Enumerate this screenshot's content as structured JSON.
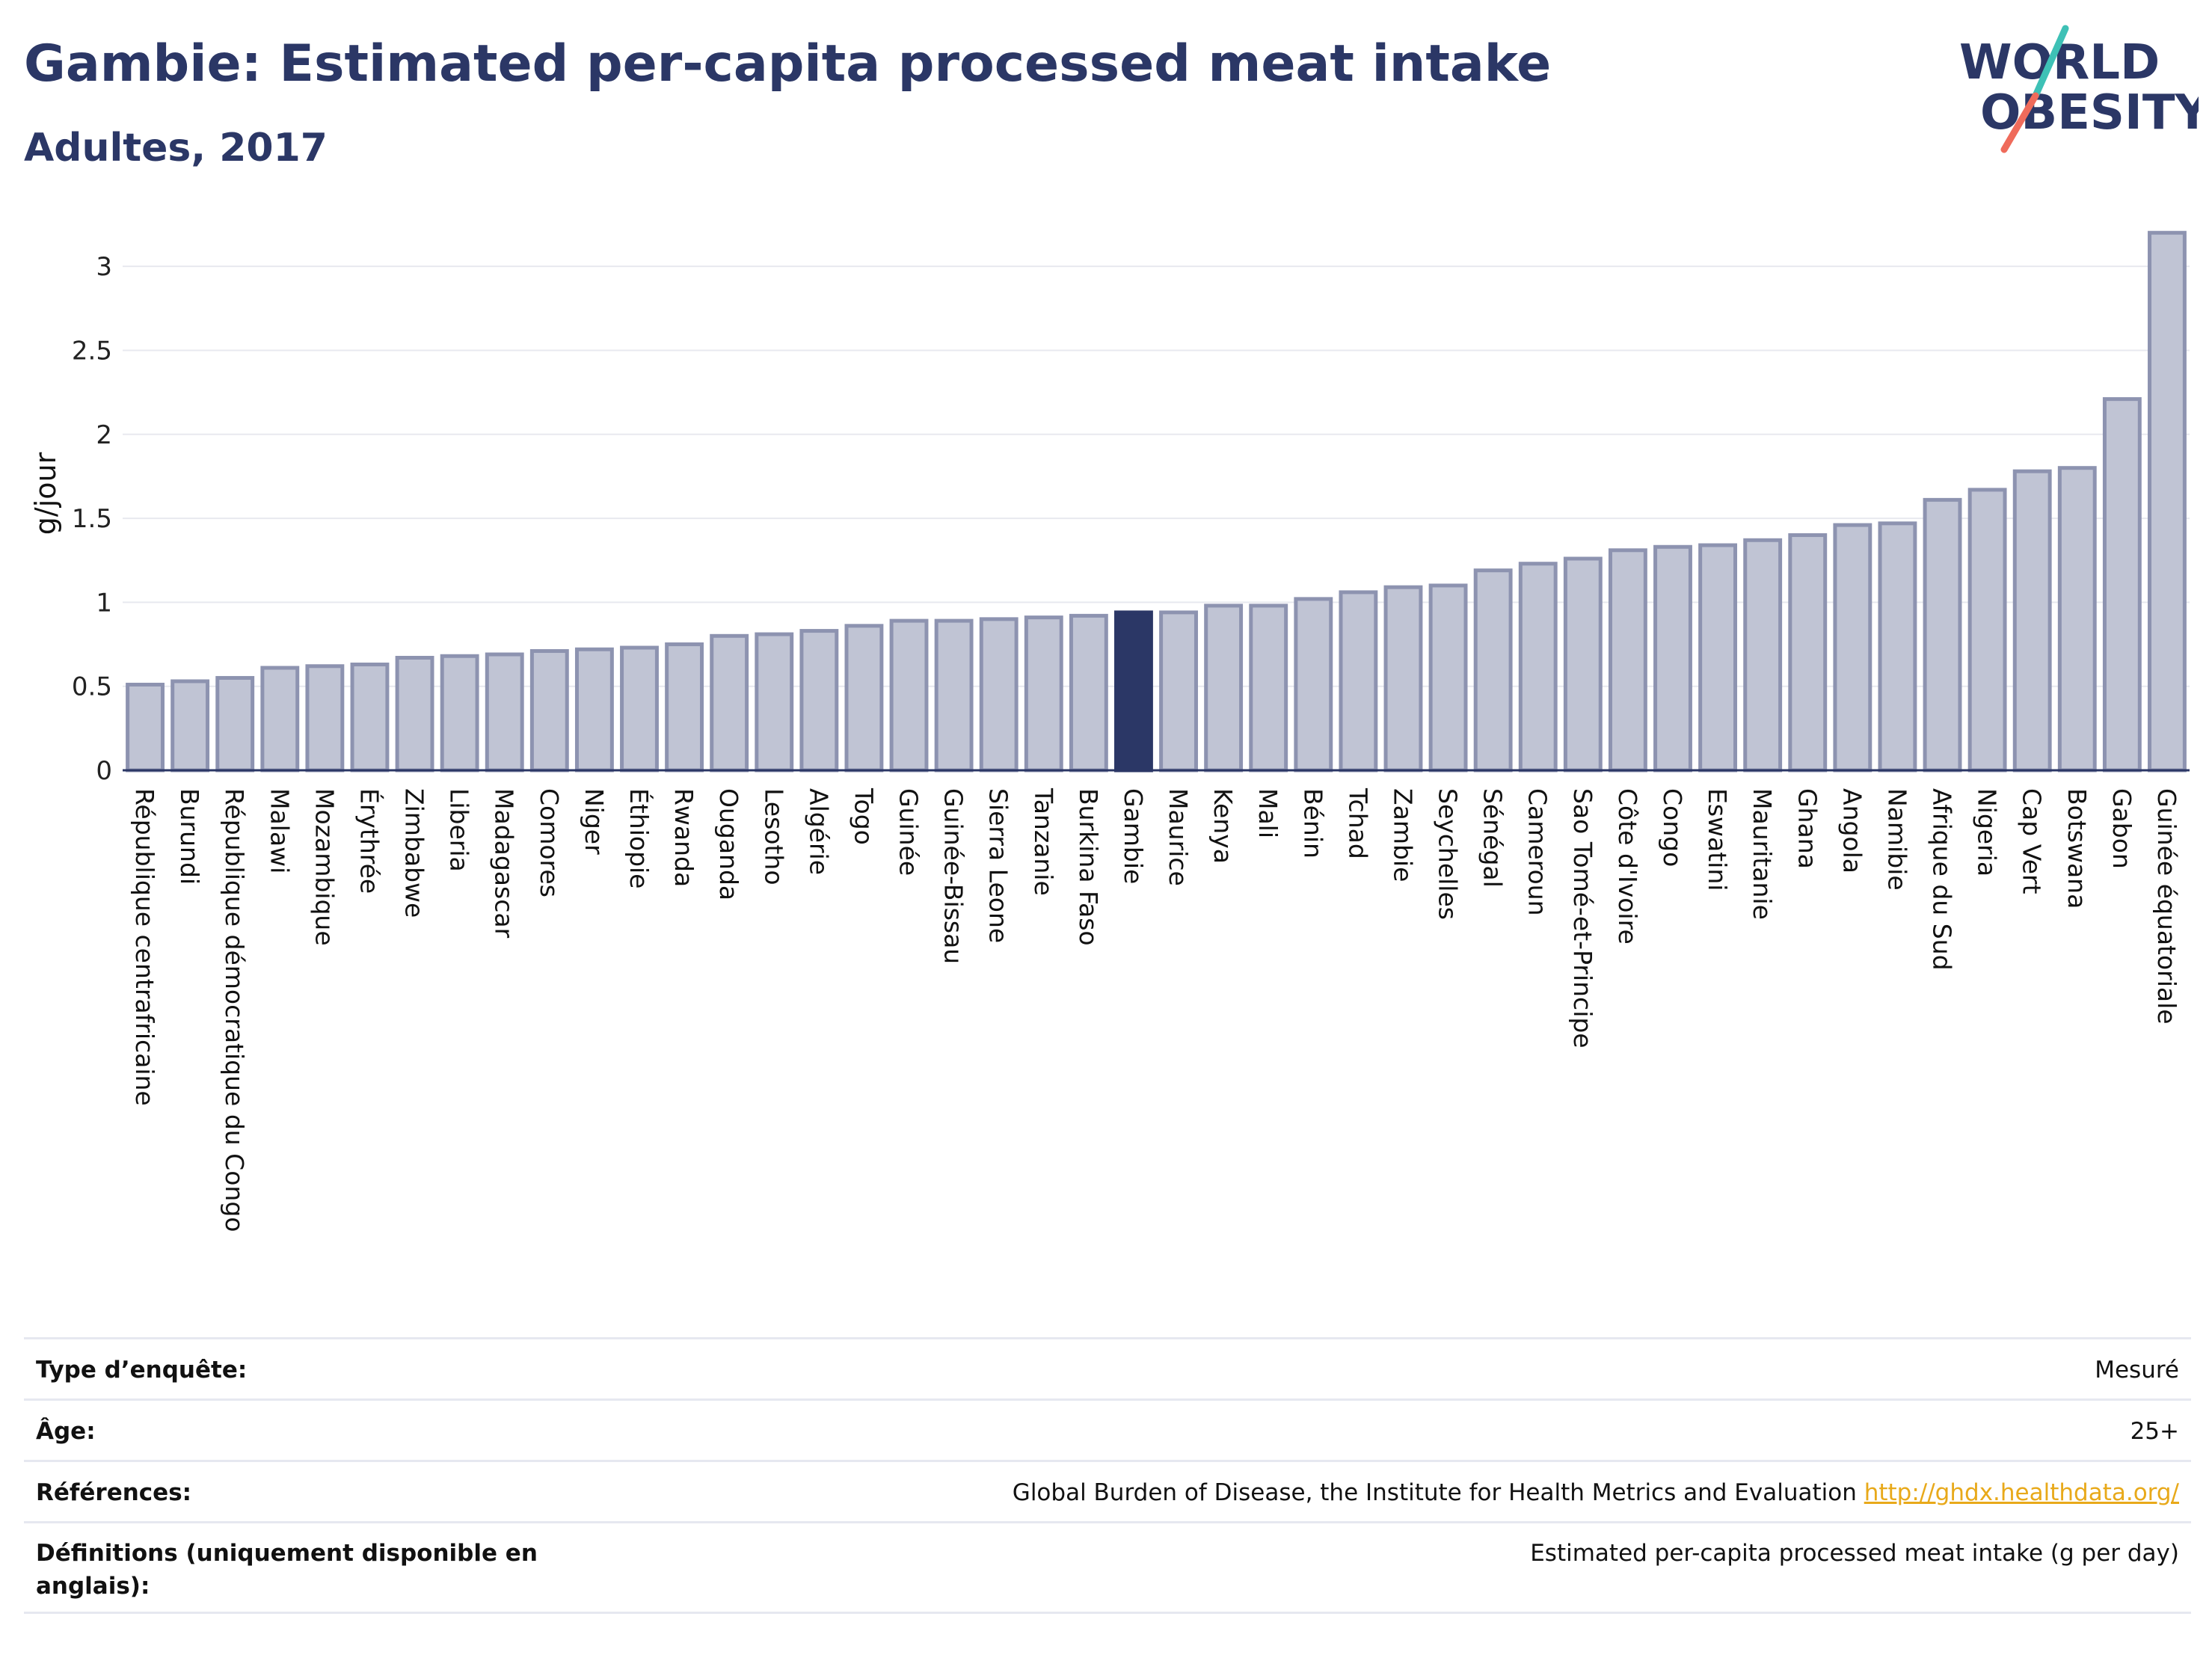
{
  "header": {
    "title": "Gambie: Estimated per-capita processed meat intake",
    "subtitle": "Adultes, 2017"
  },
  "logo": {
    "line1": "WORLD",
    "line2": "OBESITY",
    "slash_colors": [
      "#3ec1b6",
      "#ef6b5b"
    ],
    "text_color": "#2b3766"
  },
  "chart_data": {
    "type": "bar",
    "ylabel": "g/jour",
    "xlabel": "",
    "ylim": [
      0,
      3.25
    ],
    "yticks": [
      0,
      0.5,
      1,
      1.5,
      2,
      2.5,
      3
    ],
    "ytick_labels": [
      "0",
      "0.5",
      "1",
      "1.5",
      "2",
      "2.5",
      "3"
    ],
    "grid": true,
    "highlight": "Gambie",
    "colors": {
      "bar": "#c0c4d4",
      "bar_border": "#8d93b0",
      "highlight": "#2b3766"
    },
    "categories": [
      "République centrafricaine",
      "Burundi",
      "République démocratique du Congo",
      "Malawi",
      "Mozambique",
      "Érythrée",
      "Zimbabwe",
      "Liberia",
      "Madagascar",
      "Comores",
      "Niger",
      "Éthiopie",
      "Rwanda",
      "Ouganda",
      "Lesotho",
      "Algérie",
      "Togo",
      "Guinée",
      "Guinée-Bissau",
      "Sierra Leone",
      "Tanzanie",
      "Burkina Faso",
      "Gambie",
      "Maurice",
      "Kenya",
      "Mali",
      "Bénin",
      "Tchad",
      "Zambie",
      "Seychelles",
      "Sénégal",
      "Cameroun",
      "Sao Tomé-et-Principe",
      "Côte d'Ivoire",
      "Congo",
      "Eswatini",
      "Mauritanie",
      "Ghana",
      "Angola",
      "Namibie",
      "Afrique du Sud",
      "Nigeria",
      "Cap Vert",
      "Botswana",
      "Gabon",
      "Guinée équatoriale"
    ],
    "values": [
      0.51,
      0.53,
      0.55,
      0.61,
      0.62,
      0.63,
      0.67,
      0.68,
      0.69,
      0.71,
      0.72,
      0.73,
      0.75,
      0.8,
      0.81,
      0.83,
      0.86,
      0.89,
      0.89,
      0.9,
      0.91,
      0.92,
      0.94,
      0.94,
      0.98,
      0.98,
      1.02,
      1.06,
      1.09,
      1.1,
      1.19,
      1.23,
      1.26,
      1.31,
      1.33,
      1.34,
      1.37,
      1.4,
      1.46,
      1.47,
      1.61,
      1.67,
      1.78,
      1.8,
      2.21,
      3.2
    ]
  },
  "meta": [
    {
      "key": "Type d’enquête:",
      "value": "Mesuré"
    },
    {
      "key": "Âge:",
      "value": "25+"
    },
    {
      "key": "Références:",
      "value": "Global Burden of Disease, the Institute for Health Metrics and Evaluation",
      "link": "http://ghdx.healthdata.org/"
    },
    {
      "key": "Définitions (uniquement disponible en anglais):",
      "value": "Estimated per-capita processed meat intake (g per day)"
    }
  ]
}
